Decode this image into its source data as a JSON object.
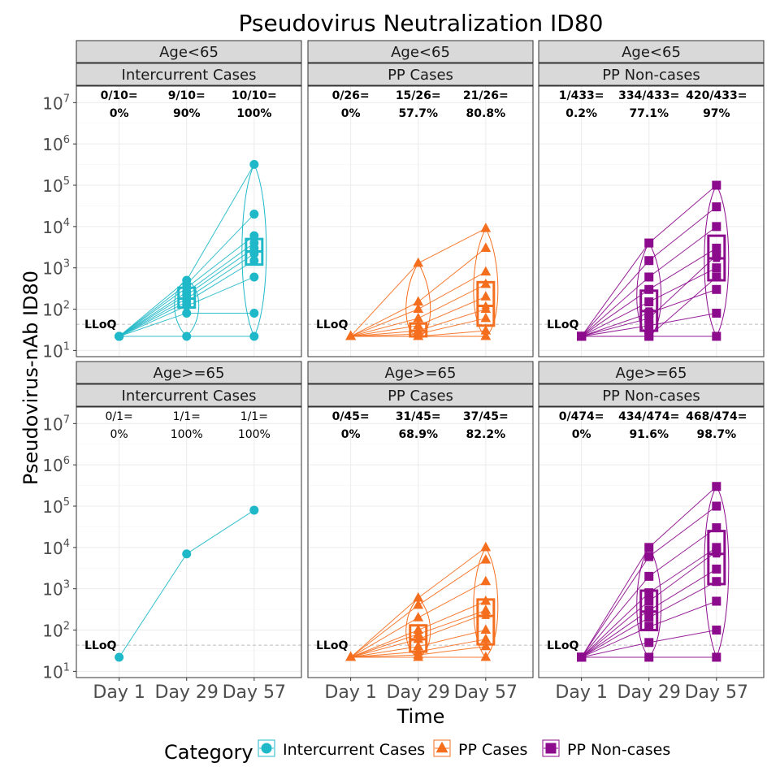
{
  "chart_data": {
    "type": "line",
    "title": "Pseudovirus Neutralization ID80",
    "xlabel": "Time",
    "ylabel": "Pseudovirus-nAb ID80",
    "x_ticks": [
      "Day 1",
      "Day 29",
      "Day 57"
    ],
    "y_scale": "log10",
    "y_ticks": [
      {
        "base": "10",
        "exp": "1"
      },
      {
        "base": "10",
        "exp": "2"
      },
      {
        "base": "10",
        "exp": "3"
      },
      {
        "base": "10",
        "exp": "4"
      },
      {
        "base": "10",
        "exp": "5"
      },
      {
        "base": "10",
        "exp": "6"
      },
      {
        "base": "10",
        "exp": "7"
      }
    ],
    "ylim_log10": [
      0.85,
      7.4
    ],
    "lloq_label": "LLoQ",
    "lloq_value": 43,
    "grid": true,
    "legend": {
      "title": "Category",
      "position": "bottom",
      "entries": [
        {
          "label": "Intercurrent Cases",
          "color": "#1fb8c8",
          "shape": "circle"
        },
        {
          "label": "PP Cases",
          "color": "#f56e1e",
          "shape": "triangle"
        },
        {
          "label": "PP Non-cases",
          "color": "#8c0a8c",
          "shape": "square"
        }
      ]
    },
    "panels": [
      {
        "strip_age": "Age<65",
        "strip_group": "Intercurrent Cases",
        "color": "#1fb8c8",
        "shape": "circle",
        "label_bold": true,
        "labels": [
          [
            "0/10=",
            "0%"
          ],
          [
            "9/10=",
            "90%"
          ],
          [
            "10/10=",
            "100%"
          ]
        ],
        "medians": [
          22,
          180,
          2500
        ],
        "q1": [
          22,
          110,
          1200
        ],
        "q3": [
          22,
          330,
          5000
        ],
        "points": [
          [
            22,
            22,
            22,
            22,
            22,
            22,
            22,
            22,
            22,
            22
          ],
          [
            22,
            80,
            120,
            150,
            180,
            220,
            260,
            330,
            400,
            500
          ],
          [
            22,
            80,
            600,
            1500,
            2200,
            3000,
            4000,
            6000,
            20000,
            320000
          ]
        ]
      },
      {
        "strip_age": "Age<65",
        "strip_group": "PP Cases",
        "color": "#f56e1e",
        "shape": "triangle",
        "label_bold": true,
        "labels": [
          [
            "0/26=",
            "0%"
          ],
          [
            "15/26=",
            "57.7%"
          ],
          [
            "21/26=",
            "80.8%"
          ]
        ],
        "medians": [
          22,
          30,
          120
        ],
        "q1": [
          22,
          22,
          40
        ],
        "q3": [
          22,
          45,
          450
        ],
        "points": [
          [
            22,
            22,
            22,
            22,
            22,
            22,
            22,
            22,
            22,
            22
          ],
          [
            22,
            22,
            25,
            30,
            40,
            60,
            100,
            150,
            1300,
            22
          ],
          [
            22,
            30,
            60,
            100,
            200,
            400,
            800,
            3000,
            9000,
            22
          ]
        ]
      },
      {
        "strip_age": "Age<65",
        "strip_group": "PP Non-cases",
        "color": "#8c0a8c",
        "shape": "square",
        "label_bold": true,
        "labels": [
          [
            "1/433=",
            "0.2%"
          ],
          [
            "334/433=",
            "77.1%"
          ],
          [
            "420/433=",
            "97%"
          ]
        ],
        "medians": [
          22,
          90,
          1700
        ],
        "q1": [
          22,
          30,
          500
        ],
        "q3": [
          22,
          280,
          6000
        ],
        "points": [
          [
            22,
            22,
            22,
            22,
            22,
            22,
            22,
            22,
            22,
            22
          ],
          [
            22,
            40,
            80,
            150,
            300,
            600,
            1500,
            4000,
            22,
            60
          ],
          [
            22,
            80,
            300,
            1000,
            3000,
            10000,
            30000,
            100000,
            600,
            2000
          ]
        ]
      },
      {
        "strip_age": "Age>=65",
        "strip_group": "Intercurrent Cases",
        "color": "#1fb8c8",
        "shape": "circle",
        "label_bold": false,
        "labels": [
          [
            "0/1=",
            "0%"
          ],
          [
            "1/1=",
            "100%"
          ],
          [
            "1/1=",
            "100%"
          ]
        ],
        "medians": [
          22,
          7000,
          80000
        ],
        "q1": [
          22,
          7000,
          80000
        ],
        "q3": [
          22,
          7000,
          80000
        ],
        "points": [
          [
            22
          ],
          [
            7000
          ],
          [
            80000
          ]
        ]
      },
      {
        "strip_age": "Age>=65",
        "strip_group": "PP Cases",
        "color": "#f56e1e",
        "shape": "triangle",
        "label_bold": true,
        "labels": [
          [
            "0/45=",
            "0%"
          ],
          [
            "31/45=",
            "68.9%"
          ],
          [
            "37/45=",
            "82.2%"
          ]
        ],
        "medians": [
          22,
          60,
          220
        ],
        "q1": [
          22,
          30,
          45
        ],
        "q3": [
          22,
          130,
          550
        ],
        "points": [
          [
            22,
            22,
            22,
            22,
            22,
            22,
            22,
            22,
            22,
            22
          ],
          [
            22,
            25,
            40,
            60,
            100,
            200,
            400,
            600,
            30,
            80
          ],
          [
            22,
            40,
            100,
            250,
            500,
            1500,
            5000,
            10000,
            60,
            300
          ]
        ]
      },
      {
        "strip_age": "Age>=65",
        "strip_group": "PP Non-cases",
        "color": "#8c0a8c",
        "shape": "square",
        "label_bold": true,
        "labels": [
          [
            "0/474=",
            "0%"
          ],
          [
            "434/474=",
            "91.6%"
          ],
          [
            "468/474=",
            "98.7%"
          ]
        ],
        "medians": [
          22,
          280,
          7000
        ],
        "q1": [
          22,
          100,
          1300
        ],
        "q3": [
          22,
          900,
          25000
        ],
        "points": [
          [
            22,
            22,
            22,
            22,
            22,
            22,
            22,
            22,
            22,
            22
          ],
          [
            22,
            50,
            120,
            300,
            800,
            2000,
            6000,
            10000,
            200,
            500
          ],
          [
            22,
            100,
            500,
            3000,
            10000,
            30000,
            100000,
            300000,
            1500,
            8000
          ]
        ]
      }
    ]
  }
}
